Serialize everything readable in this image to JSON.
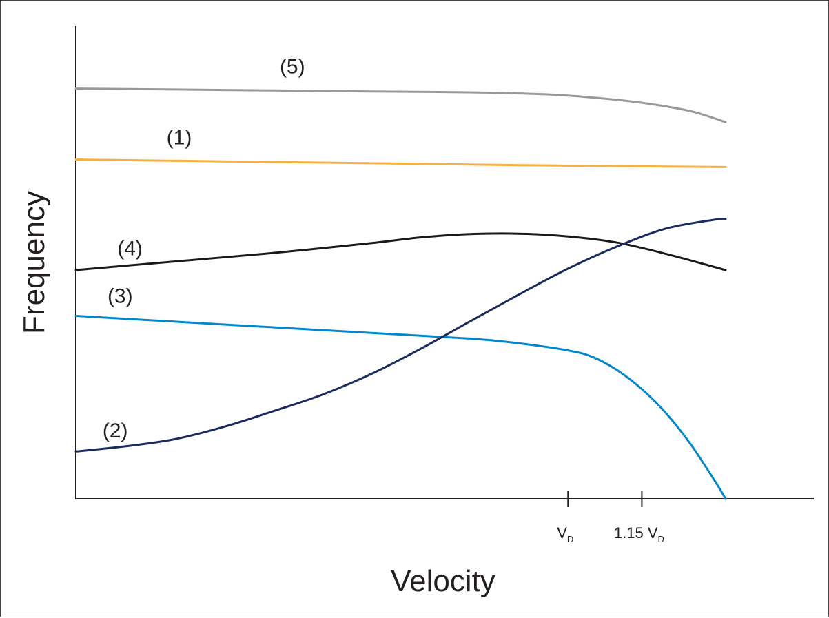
{
  "chart_data": {
    "type": "line",
    "title": "",
    "xlabel": "Velocity",
    "ylabel": "Frequency",
    "xlim": [
      0,
      1.4
    ],
    "ylim": [
      0,
      1.0
    ],
    "grid": false,
    "legend": "none",
    "x_ticks": [
      {
        "x": 1.0,
        "label": "V",
        "subscript": "D"
      },
      {
        "x": 1.15,
        "label": "1.15 V",
        "subscript": "D"
      }
    ],
    "series": [
      {
        "name": "(5)",
        "color": "#999999",
        "x": [
          0,
          0.2,
          0.4,
          0.6,
          0.8,
          0.95,
          1.05,
          1.15,
          1.25,
          1.32
        ],
        "y": [
          0.868,
          0.866,
          0.864,
          0.862,
          0.86,
          0.856,
          0.849,
          0.838,
          0.82,
          0.797
        ]
      },
      {
        "name": "(1)",
        "color": "#f5b041",
        "x": [
          0,
          0.3,
          0.6,
          0.9,
          1.2,
          1.32
        ],
        "y": [
          0.718,
          0.714,
          0.71,
          0.706,
          0.703,
          0.702
        ]
      },
      {
        "name": "(4)",
        "color": "#1a1a1a",
        "x": [
          0,
          0.2,
          0.4,
          0.6,
          0.7,
          0.8,
          0.9,
          1.0,
          1.1,
          1.2,
          1.32
        ],
        "y": [
          0.484,
          0.502,
          0.52,
          0.541,
          0.553,
          0.56,
          0.561,
          0.555,
          0.542,
          0.518,
          0.484
        ]
      },
      {
        "name": "(3)",
        "color": "#0088cf",
        "x": [
          0,
          0.2,
          0.4,
          0.6,
          0.8,
          0.9,
          1.0,
          1.05,
          1.1,
          1.15,
          1.2,
          1.25,
          1.3,
          1.32
        ],
        "y": [
          0.387,
          0.375,
          0.363,
          0.351,
          0.339,
          0.329,
          0.314,
          0.3,
          0.272,
          0.232,
          0.18,
          0.114,
          0.035,
          0.0
        ]
      },
      {
        "name": "(2)",
        "color": "#1b2b60",
        "x": [
          0,
          0.1,
          0.2,
          0.3,
          0.4,
          0.5,
          0.6,
          0.7,
          0.8,
          0.9,
          1.0,
          1.1,
          1.2,
          1.3,
          1.32
        ],
        "y": [
          0.1,
          0.111,
          0.126,
          0.152,
          0.185,
          0.22,
          0.264,
          0.317,
          0.375,
          0.432,
          0.487,
          0.534,
          0.572,
          0.591,
          0.592
        ]
      }
    ],
    "curve_labels": [
      {
        "text": "(5)",
        "series": "(5)",
        "x": 0.44,
        "y": 0.9
      },
      {
        "text": "(1)",
        "series": "(1)",
        "x": 0.21,
        "y": 0.75
      },
      {
        "text": "(4)",
        "series": "(4)",
        "x": 0.11,
        "y": 0.515
      },
      {
        "text": "(3)",
        "series": "(3)",
        "x": 0.09,
        "y": 0.415
      },
      {
        "text": "(2)",
        "series": "(2)",
        "x": 0.08,
        "y": 0.13
      }
    ]
  }
}
